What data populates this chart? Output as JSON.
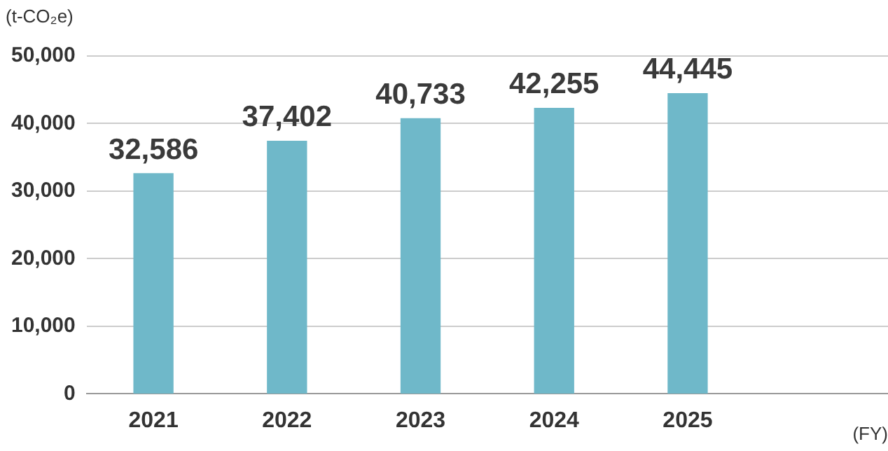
{
  "chart_data": {
    "type": "bar",
    "ylabel": "(t-CO₂e)",
    "xlabel": "(FY)",
    "categories": [
      "2021",
      "2022",
      "2023",
      "2024",
      "2025",
      null
    ],
    "values": [
      32586,
      37402,
      40733,
      42255,
      44445,
      null
    ],
    "value_labels": [
      "32,586",
      "37,402",
      "40,733",
      "42,255",
      "44,445",
      null
    ],
    "color": "#6fb8c9",
    "ylim": [
      0,
      50000
    ],
    "yticks": [
      0,
      {
        "value": 10000,
        "label": "10,000"
      },
      {
        "value": 20000,
        "label": "20,000"
      },
      {
        "value": 30000,
        "label": "30,000"
      },
      {
        "value": 40000,
        "label": "40,000"
      },
      {
        "value": 50000,
        "label": "50,000"
      }
    ],
    "grid": "y",
    "legend": false
  }
}
